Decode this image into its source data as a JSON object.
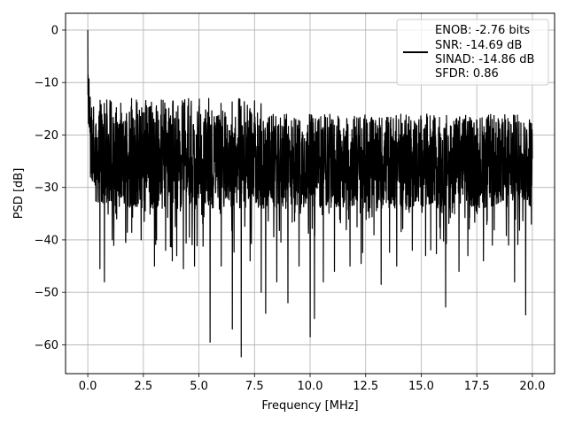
{
  "chart_data": {
    "type": "line",
    "title": "",
    "xlabel": "Frequency [MHz]",
    "ylabel": "PSD [dB]",
    "xlim": [
      -1.0,
      21.0
    ],
    "ylim": [
      -65.5,
      3.2
    ],
    "xticks": [
      0.0,
      2.5,
      5.0,
      7.5,
      10.0,
      12.5,
      15.0,
      17.5,
      20.0
    ],
    "xtick_labels": [
      "0.0",
      "2.5",
      "5.0",
      "7.5",
      "10.0",
      "12.5",
      "15.0",
      "17.5",
      "20.0"
    ],
    "yticks": [
      0,
      -10,
      -20,
      -30,
      -40,
      -50,
      -60
    ],
    "ytick_labels": [
      "0",
      "−10",
      "−20",
      "−30",
      "−40",
      "−50",
      "−60"
    ],
    "grid": true,
    "legend_position": "top-right",
    "line_color": "#000000",
    "legend_lines": [
      "ENOB: -2.76 bits",
      "SNR: -14.69 dB",
      "SINAD: -14.86 dB",
      "SFDR: 0.86"
    ],
    "x_range": [
      0.0,
      20.0
    ],
    "spike_dips": [
      {
        "x": 0.55,
        "y": -45.5
      },
      {
        "x": 0.75,
        "y": -48.0
      },
      {
        "x": 1.1,
        "y": -40.0
      },
      {
        "x": 1.7,
        "y": -40.0
      },
      {
        "x": 2.4,
        "y": -40.0
      },
      {
        "x": 3.0,
        "y": -45.0
      },
      {
        "x": 3.5,
        "y": -42.0
      },
      {
        "x": 3.8,
        "y": -44.0
      },
      {
        "x": 4.0,
        "y": -43.0
      },
      {
        "x": 4.3,
        "y": -45.5
      },
      {
        "x": 4.8,
        "y": -45.0
      },
      {
        "x": 5.5,
        "y": -59.5
      },
      {
        "x": 6.0,
        "y": -45.0
      },
      {
        "x": 6.5,
        "y": -57.0
      },
      {
        "x": 6.9,
        "y": -62.3
      },
      {
        "x": 7.3,
        "y": -44.0
      },
      {
        "x": 7.8,
        "y": -50.0
      },
      {
        "x": 8.0,
        "y": -54.0
      },
      {
        "x": 8.5,
        "y": -48.0
      },
      {
        "x": 9.0,
        "y": -52.0
      },
      {
        "x": 9.5,
        "y": -45.0
      },
      {
        "x": 10.0,
        "y": -58.5
      },
      {
        "x": 10.2,
        "y": -55.0
      },
      {
        "x": 10.6,
        "y": -48.0
      },
      {
        "x": 11.1,
        "y": -46.0
      },
      {
        "x": 11.8,
        "y": -45.0
      },
      {
        "x": 12.3,
        "y": -44.5
      },
      {
        "x": 13.2,
        "y": -48.5
      },
      {
        "x": 13.9,
        "y": -45.0
      },
      {
        "x": 14.6,
        "y": -42.0
      },
      {
        "x": 15.2,
        "y": -43.0
      },
      {
        "x": 16.1,
        "y": -52.8
      },
      {
        "x": 16.7,
        "y": -46.0
      },
      {
        "x": 17.1,
        "y": -43.0
      },
      {
        "x": 17.8,
        "y": -44.0
      },
      {
        "x": 18.2,
        "y": -41.0
      },
      {
        "x": 19.2,
        "y": -48.0
      },
      {
        "x": 19.7,
        "y": -54.3
      },
      {
        "x": 19.95,
        "y": -37.0
      }
    ]
  }
}
